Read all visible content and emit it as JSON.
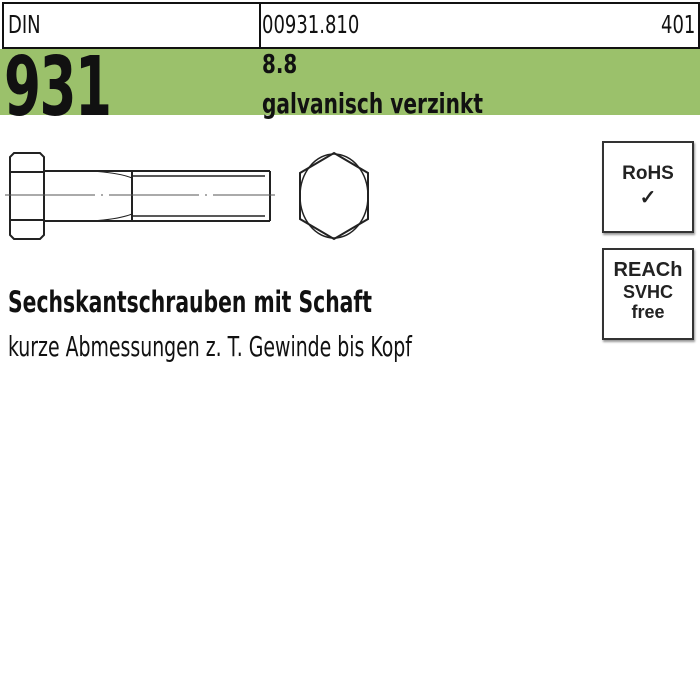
{
  "header": {
    "standard_label": "DIN",
    "article_number": "00931.810",
    "page_code": "401"
  },
  "band": {
    "din_number": "931",
    "strength_class": "8.8",
    "finish": "galvanisch verzinkt",
    "color": "#9bc16b"
  },
  "product": {
    "title": "Sechskantschrauben mit Schaft",
    "subtitle": "kurze Abmessungen z. T. Gewinde bis Kopf"
  },
  "badges": {
    "rohs": {
      "label": "RoHS",
      "mark": "✓"
    },
    "reach": {
      "line1": "REACh",
      "line2": "SVHC",
      "line3": "free"
    }
  },
  "icons": [
    "hex-bolt-side-view",
    "hex-head-top-view",
    "checkmark-icon"
  ]
}
